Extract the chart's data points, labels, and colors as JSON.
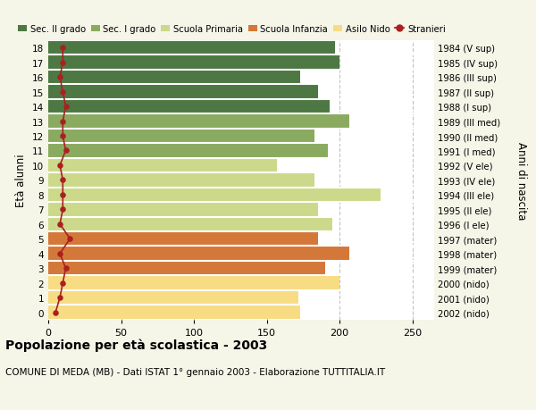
{
  "ages": [
    0,
    1,
    2,
    3,
    4,
    5,
    6,
    7,
    8,
    9,
    10,
    11,
    12,
    13,
    14,
    15,
    16,
    17,
    18
  ],
  "years": [
    "2002 (nido)",
    "2001 (nido)",
    "2000 (nido)",
    "1999 (mater)",
    "1998 (mater)",
    "1997 (mater)",
    "1996 (I ele)",
    "1995 (II ele)",
    "1994 (III ele)",
    "1993 (IV ele)",
    "1992 (V ele)",
    "1991 (I med)",
    "1990 (II med)",
    "1989 (III med)",
    "1988 (I sup)",
    "1987 (II sup)",
    "1986 (III sup)",
    "1985 (IV sup)",
    "1984 (V sup)"
  ],
  "bar_values": [
    173,
    172,
    200,
    190,
    207,
    185,
    195,
    185,
    228,
    183,
    157,
    192,
    183,
    207,
    193,
    185,
    173,
    200,
    197
  ],
  "stranieri": [
    5,
    8,
    10,
    12,
    8,
    15,
    8,
    10,
    10,
    10,
    8,
    12,
    10,
    10,
    12,
    10,
    8,
    10,
    10
  ],
  "bar_colors": [
    "#f7dc84",
    "#f7dc84",
    "#f7dc84",
    "#d4783a",
    "#d4783a",
    "#d4783a",
    "#ccd98a",
    "#ccd98a",
    "#ccd98a",
    "#ccd98a",
    "#ccd98a",
    "#8aaa60",
    "#8aaa60",
    "#8aaa60",
    "#4d7843",
    "#4d7843",
    "#4d7843",
    "#4d7843",
    "#4d7843"
  ],
  "legend_colors_list": [
    [
      "Sec. II grado",
      "#4d7843"
    ],
    [
      "Sec. I grado",
      "#8aaa60"
    ],
    [
      "Scuola Primaria",
      "#ccd98a"
    ],
    [
      "Scuola Infanzia",
      "#d4783a"
    ],
    [
      "Asilo Nido",
      "#f7dc84"
    ],
    [
      "Stranieri",
      "#aa2020"
    ]
  ],
  "stranieri_color": "#aa2020",
  "title": "Popolazione per età scolastica - 2003",
  "subtitle": "COMUNE DI MEDA (MB) - Dati ISTAT 1° gennaio 2003 - Elaborazione TUTTITALIA.IT",
  "ylabel": "Età alunni",
  "right_ylabel": "Anni di nascita",
  "xlim": [
    0,
    265
  ],
  "background_color": "#f5f5e8",
  "plot_bg": "#ffffff",
  "grid_color": "#bbbbbb",
  "separator_color": "#ffffff"
}
